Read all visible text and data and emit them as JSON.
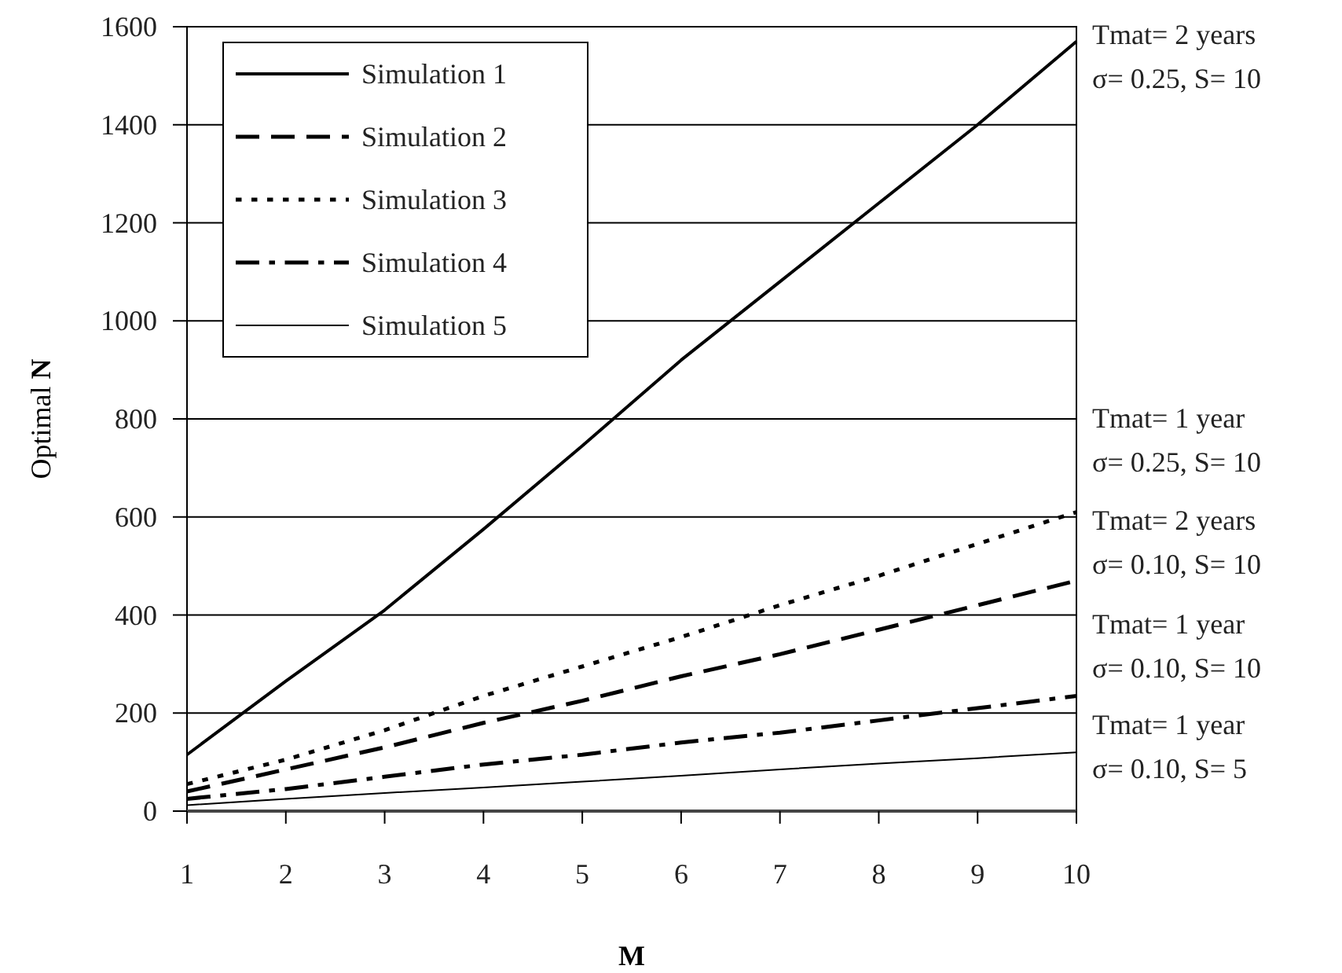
{
  "chart_data": {
    "type": "line",
    "xlabel": "M",
    "ylabel": "Optimal N",
    "x": [
      1,
      2,
      3,
      4,
      5,
      6,
      7,
      8,
      9,
      10
    ],
    "xlim": [
      1,
      10
    ],
    "xticks": [
      1,
      2,
      3,
      4,
      5,
      6,
      7,
      8,
      9,
      10
    ],
    "ylim": [
      0,
      1600
    ],
    "yticks": [
      0,
      200,
      400,
      600,
      800,
      1000,
      1200,
      1400,
      1600
    ],
    "grid": "y",
    "legend": "top left",
    "marker": "none",
    "series": [
      {
        "name": "Simulation 1",
        "color": "#000000",
        "line_style": "solid",
        "values": [
          115,
          265,
          410,
          575,
          745,
          920,
          1080,
          1240,
          1400,
          1570
        ]
      },
      {
        "name": "Simulation 2",
        "color": "#000000",
        "line_style": "dashed",
        "values": [
          40,
          85,
          130,
          180,
          225,
          275,
          320,
          370,
          420,
          470
        ]
      },
      {
        "name": "Simulation 3",
        "color": "#000000",
        "line_style": "dotted",
        "values": [
          55,
          105,
          165,
          235,
          295,
          355,
          420,
          480,
          545,
          610
        ]
      },
      {
        "name": "Simulation 4",
        "color": "#000000",
        "line_style": "dashdot",
        "values": [
          25,
          45,
          70,
          95,
          115,
          140,
          160,
          185,
          210,
          235
        ]
      },
      {
        "name": "Simulation 5",
        "color": "#000000",
        "line_style": "solid",
        "values": [
          12,
          25,
          37,
          48,
          60,
          72,
          85,
          97,
          108,
          120
        ]
      }
    ],
    "annotations": [
      "Tmat= 2 years\nσ= 0.25, S= 10",
      "Tmat= 1 year\nσ= 0.25, S= 10",
      "Tmat= 2 years\nσ= 0.10, S= 10",
      "Tmat= 1 year\nσ= 0.10, S= 10",
      "Tmat= 1 year\nσ= 0.10,  S= 5"
    ]
  }
}
